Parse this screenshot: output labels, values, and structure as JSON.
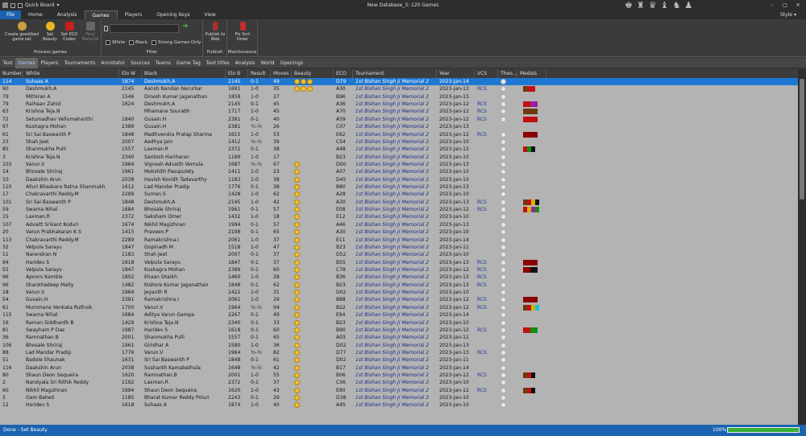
{
  "window": {
    "title": "New Database_3:  120 Games",
    "quickboard_label": "Quick Board"
  },
  "tabs": [
    "File",
    "Home",
    "Analysis",
    "Games",
    "Players",
    "Opening Keys",
    "View"
  ],
  "style_label": "Style",
  "ribbon": {
    "process_games": {
      "label": "Process games",
      "buttons": [
        "Create good/bad game set",
        "Set Beauty",
        "Set ECO Codes",
        "Final Material"
      ]
    },
    "filter": {
      "label": "Filter",
      "checkboxes": [
        "White",
        "Black",
        "Strong Games Only"
      ]
    },
    "publish": {
      "label": "Publish",
      "button": "Publish to Web"
    },
    "maintenance": {
      "label": "Maintenance",
      "button": "Fix Sort Order"
    }
  },
  "subtabs": [
    "Text",
    "Games",
    "Players",
    "Tournaments",
    "Annotator",
    "Sources",
    "Teams",
    "Game Tag",
    "Text titles",
    "Analysis",
    "World",
    "Openings"
  ],
  "columns": [
    "Number",
    "White",
    "Elo W",
    "Black",
    "Elo B",
    "Result",
    "Moves",
    "Beauty",
    "ECO",
    "Tournament",
    "Year",
    "VCS",
    "Theo...",
    "Medals"
  ],
  "rows": [
    [
      "114",
      "Suhaas A",
      "1874",
      "Deshmukh,A",
      "2145",
      "0-1",
      "49",
      "3",
      "D79",
      "1st Bishan Singh Ji Memorial 2",
      "2023-Jan-14",
      "",
      "1",
      ""
    ],
    [
      "90",
      "Deshmukh,A",
      "2145",
      "Aansh Nandan Nerurkar",
      "1691",
      "1-0",
      "35",
      "3",
      "A30",
      "1st Bishan Singh Ji Memorial 2",
      "2023-Jan-13",
      "RCS",
      "1",
      "brr"
    ],
    [
      "79",
      "Mithiran A",
      "1546",
      "Dinesh Kumar Jaganathan",
      "1858",
      "1-0",
      "27",
      "",
      "B96",
      "1st Bishan Singh Ji Memorial 2",
      "2023-Jan-13",
      "",
      "1",
      ""
    ],
    [
      "79",
      "Raihaan Zahid",
      "1624",
      "Deshmukh,A",
      "2145",
      "0-1",
      "45",
      "",
      "A36",
      "1st Bishan Singh Ji Memorial 2",
      "2023-Jan-12",
      "RCS",
      "1",
      "rp"
    ],
    [
      "63",
      "Krishna Teja.N",
      "",
      "Mhamane Sourabh",
      "1717",
      "1-0",
      "45",
      "",
      "A70",
      "1st Bishan Singh Ji Memorial 2",
      "2023-Jan-12",
      "RCS",
      "1",
      "b"
    ],
    [
      "72",
      "Setumadhav Vellumahanthi",
      "1840",
      "Gusain.H",
      "2381",
      "0-1",
      "40",
      "",
      "A59",
      "1st Bishan Singh Ji Memorial 2",
      "2023-Jan-12",
      "RCS",
      "1",
      "rr"
    ],
    [
      "97",
      "Kushagra Mohan",
      "2389",
      "Gusain.H",
      "2381",
      "½-½",
      "26",
      "",
      "C07",
      "1st Bishan Singh Ji Memorial 2",
      "2023-Jan-13",
      "",
      "",
      ""
    ],
    [
      "61",
      "Sri Sai Baswanth P",
      "1848",
      "Madhvendra Pratap Sharma",
      "1615",
      "1-0",
      "53",
      "",
      "E62",
      "1st Bishan Singh Ji Memorial 2",
      "2023-Jan-12",
      "RCS",
      "1",
      "d"
    ],
    [
      "23",
      "Shah Jeet",
      "2007",
      "Aadhya Jain",
      "1412",
      "½-½",
      "39",
      "",
      "C54",
      "1st Bishan Singh Ji Memorial 2",
      "2023-Jan-10",
      "",
      "1",
      ""
    ],
    [
      "85",
      "Shanmukha Pulli",
      "1557",
      "Laxman.R",
      "2372",
      "0-1",
      "38",
      "",
      "A48",
      "1st Bishan Singh Ji Memorial 2",
      "2023-Jan-13",
      "",
      "1",
      "rgk"
    ],
    [
      "3",
      "Krishna Teja.N",
      "2340",
      "Santosh Hariharan",
      "1189",
      "1-0",
      "17",
      "",
      "B23",
      "1st Bishan Singh Ji Memorial 2",
      "2023-Jan-10",
      "",
      "1",
      ""
    ],
    [
      "103",
      "Varun.V",
      "1964",
      "Vignesh Advaith Vemula",
      "1687",
      "½-½",
      "67",
      "1",
      "D00",
      "1st Bishan Singh Ji Memorial 2",
      "2023-Jan-13",
      "",
      "1",
      ""
    ],
    [
      "14",
      "Bhosale Shriraj",
      "1961",
      "Mokshith Pasupulety",
      "1411",
      "1-0",
      "23",
      "1",
      "A07",
      "1st Bishan Singh Ji Memorial 2",
      "2023-Jan-10",
      "",
      "1",
      ""
    ],
    [
      "10",
      "Daakshin Arun",
      "2038",
      "Havish Kovidh Tadavarthy",
      "1183",
      "1-0",
      "38",
      "1",
      "D45",
      "1st Bishan Singh Ji Memorial 2",
      "2023-Jan-10",
      "",
      "1",
      ""
    ],
    [
      "110",
      "Alluri Bhaskara Ratna Shanmukh",
      "1612",
      "Lad Mandar Pradip",
      "1776",
      "0-1",
      "38",
      "1",
      "B80",
      "1st Bishan Singh Ji Memorial 2",
      "2023-Jan-13",
      "",
      "1",
      ""
    ],
    [
      "17",
      "Chakravarthi Reddy.M",
      "2289",
      "Suman.S",
      "1428",
      "1-0",
      "62",
      "1",
      "A28",
      "1st Bishan Singh Ji Memorial 2",
      "2023-Jan-10",
      "",
      "1",
      ""
    ],
    [
      "101",
      "Sri Sai Baswanth P",
      "1848",
      "Deshmukh,A",
      "2145",
      "1-0",
      "42",
      "1",
      "A30",
      "1st Bishan Singh Ji Memorial 2",
      "2023-Jan-13",
      "RCS",
      "1",
      "bryk"
    ],
    [
      "59",
      "Swarna Nihal",
      "1684",
      "Bhosale Shriraj",
      "1961",
      "0-1",
      "57",
      "1",
      "E08",
      "1st Bishan Singh Ji Memorial 2",
      "2023-Jan-12",
      "RCS",
      "1",
      "rypg"
    ],
    [
      "15",
      "Laxman.R",
      "2372",
      "Saksham Omer",
      "1432",
      "1-0",
      "18",
      "1",
      "E12",
      "1st Bishan Singh Ji Memorial 2",
      "2023-Jan-10",
      "",
      "1",
      ""
    ],
    [
      "107",
      "Advaitt Srikant Koduri",
      "1674",
      "Nikhil Magizhnan",
      "1994",
      "0-1",
      "57",
      "1",
      "A46",
      "1st Bishan Singh Ji Memorial 2",
      "2023-Jan-13",
      "",
      "1",
      ""
    ],
    [
      "20",
      "Varun Prabhakaran K S",
      "1415",
      "Praveen.P",
      "2198",
      "0-1",
      "65",
      "1",
      "A30",
      "1st Bishan Singh Ji Memorial 2",
      "2023-Jan-10",
      "",
      "1",
      ""
    ],
    [
      "113",
      "Chakravarthi Reddy.M",
      "2289",
      "Ramakrishna.I",
      "2061",
      "1-0",
      "37",
      "1",
      "E11",
      "1st Bishan Singh Ji Memorial 2",
      "2023-Jan-14",
      "",
      "1",
      ""
    ],
    [
      "32",
      "Velpula Sarayu",
      "1847",
      "Gopinadh M",
      "1518",
      "1-0",
      "47",
      "1",
      "B23",
      "1st Bishan Singh Ji Memorial 2",
      "2023-Jan-11",
      "",
      "1",
      ""
    ],
    [
      "11",
      "Narendran N",
      "1183",
      "Shah Jeet",
      "2007",
      "0-1",
      "37",
      "1",
      "D52",
      "1st Bishan Singh Ji Memorial 2",
      "2023-Jan-10",
      "",
      "1",
      ""
    ],
    [
      "94",
      "Haridev S",
      "1618",
      "Velpula Sarayu",
      "1847",
      "0-1",
      "37",
      "1",
      "B55",
      "1st Bishan Singh Ji Memorial 2",
      "2023-Jan-13",
      "RCS",
      "1",
      "d"
    ],
    [
      "55",
      "Velpula Sarayu",
      "1847",
      "Kushagra Mohan",
      "2389",
      "0-1",
      "60",
      "1",
      "C78",
      "1st Bishan Singh Ji Memorial 2",
      "2023-Jan-12",
      "RCS",
      "1",
      "dk"
    ],
    [
      "96",
      "Apoorv Kamble",
      "1802",
      "Ehaan Shaikh",
      "1460",
      "1-0",
      "28",
      "1",
      "B36",
      "1st Bishan Singh Ji Memorial 2",
      "2023-Jan-13",
      "RCS",
      "1",
      ""
    ],
    [
      "96",
      "Shankhadeep Maity",
      "1482",
      "Kishore Kumar Jaganathan",
      "1848",
      "0-1",
      "62",
      "1",
      "B23",
      "1st Bishan Singh Ji Memorial 2",
      "2023-Jan-13",
      "RCS",
      "1",
      ""
    ],
    [
      "18",
      "Varun.V",
      "1964",
      "Jeyanth R",
      "1422",
      "1-0",
      "31",
      "1",
      "D02",
      "1st Bishan Singh Ji Memorial 2",
      "2023-Jan-10",
      "",
      "1",
      ""
    ],
    [
      "54",
      "Gusain.H",
      "2381",
      "Ramakrishna.I",
      "2061",
      "1-0",
      "29",
      "1",
      "B88",
      "1st Bishan Singh Ji Memorial 2",
      "2023-Jan-12",
      "RCS",
      "1",
      "d"
    ],
    [
      "61",
      "Mummana Venkata Ruthvik",
      "1700",
      "Varun.V",
      "1964",
      "½-½",
      "94",
      "1",
      "B22",
      "1st Bishan Singh Ji Memorial 2",
      "2023-Jan-12",
      "RCS",
      "1",
      "bryc"
    ],
    [
      "115",
      "Swarna Nihal",
      "1684",
      "Aditya Varun Gampa",
      "2267",
      "0-1",
      "49",
      "1",
      "E94",
      "1st Bishan Singh Ji Memorial 2",
      "2023-Jan-14",
      "",
      "1",
      ""
    ],
    [
      "16",
      "Raman Siddhardh B",
      "1429",
      "Krishna Teja.N",
      "2340",
      "0-1",
      "33",
      "1",
      "B23",
      "1st Bishan Singh Ji Memorial 2",
      "2023-Jan-10",
      "",
      "1",
      ""
    ],
    [
      "81",
      "Swayham P Das",
      "1987",
      "Haridev S",
      "1618",
      "0-1",
      "60",
      "1",
      "B90",
      "1st Bishan Singh Ji Memorial 2",
      "2023-Jan-12",
      "RCS",
      "1",
      "rg"
    ],
    [
      "36",
      "Ramnathan.B",
      "2001",
      "Shanmukha Pulli",
      "1557",
      "0-1",
      "65",
      "1",
      "A03",
      "1st Bishan Singh Ji Memorial 2",
      "2023-Jan-11",
      "",
      "1",
      ""
    ],
    [
      "106",
      "Bhosale Shriraj",
      "1961",
      "Giridhar A",
      "1580",
      "1-0",
      "36",
      "1",
      "D02",
      "1st Bishan Singh Ji Memorial 2",
      "2023-Jan-13",
      "",
      "1",
      ""
    ],
    [
      "88",
      "Lad Mandar Pradip",
      "1776",
      "Varun.V",
      "1964",
      "½-½",
      "82",
      "1",
      "D77",
      "1st Bishan Singh Ji Memorial 2",
      "2023-Jan-13",
      "RCS",
      "1",
      ""
    ],
    [
      "51",
      "Badole Shaunak",
      "1631",
      "Sri Sai Baswanth P",
      "1848",
      "0-1",
      "61",
      "1",
      "D02",
      "1st Bishan Singh Ji Memorial 2",
      "2023-Jan-11",
      "",
      "1",
      ""
    ],
    [
      "116",
      "Daakshin Arun",
      "2038",
      "Sushanth Kamabathula",
      "1648",
      "½-½",
      "42",
      "1",
      "B17",
      "1st Bishan Singh Ji Memorial 2",
      "2023-Jan-14",
      "",
      "1",
      ""
    ],
    [
      "80",
      "Shaun Deon Sequeira",
      "1620",
      "Ramnathan.B",
      "2001",
      "1-0",
      "55",
      "1",
      "B06",
      "1st Bishan Singh Ji Memorial 2",
      "2023-Jan-12",
      "RCS",
      "1",
      "brk"
    ],
    [
      "2",
      "Nandyala Sri Rithik Reddy",
      "1192",
      "Laxman.R",
      "2372",
      "0-1",
      "37",
      "1",
      "C56",
      "1st Bishan Singh Ji Memorial 2",
      "2023-Jan-10",
      "",
      "1",
      ""
    ],
    [
      "60",
      "Nikhil Magizhnan",
      "1994",
      "Shaun Deon Sequeira",
      "1620",
      "1-0",
      "43",
      "1",
      "E90",
      "1st Bishan Singh Ji Memorial 2",
      "2023-Jan-12",
      "RCS",
      "1",
      "brk"
    ],
    [
      "5",
      "Oam Baheti",
      "1185",
      "Bharat Kumar Reddy Poluri",
      "2243",
      "0-1",
      "29",
      "1",
      "D38",
      "1st Bishan Singh Ji Memorial 2",
      "2023-Jan-10",
      "",
      "1",
      ""
    ],
    [
      "12",
      "Haridev S",
      "1618",
      "Suhaas A",
      "1874",
      "1-0",
      "40",
      "1",
      "A45",
      "1st Bishan Singh Ji Memorial 2",
      "2023-Jan-10",
      "",
      "1",
      ""
    ]
  ],
  "status": {
    "message": "Done - Set Beauty",
    "zoom": "100%",
    "progress": 1.0
  },
  "colors": {
    "accent": "#1b62b0",
    "selected_row": "#1e78d2",
    "grid_bg": "#b3b3b3"
  }
}
